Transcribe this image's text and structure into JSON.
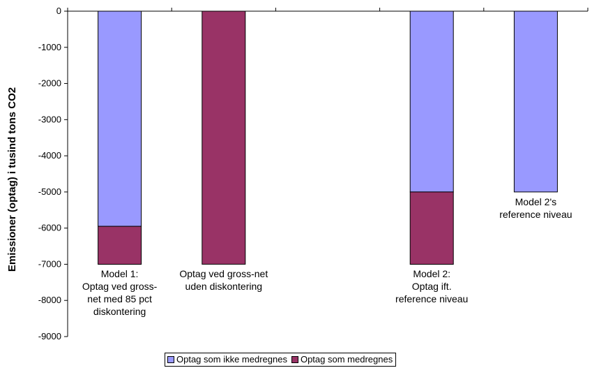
{
  "chart_data": {
    "type": "bar",
    "stacked": true,
    "ylabel": "Emissioner (optag) i tusind tons CO2",
    "ylim": [
      -9000,
      0
    ],
    "yticks": [
      0,
      -1000,
      -2000,
      -3000,
      -4000,
      -5000,
      -6000,
      -7000,
      -8000,
      -9000
    ],
    "categories": [
      "Model 1:\nOptag ved gross-\nnet med 85 pct\ndiskontering",
      "Optag ved gross-net\nuden diskontering",
      "",
      "Model 2:\nOptag ift.\nreference niveau",
      "Model 2's\nreference niveau"
    ],
    "series": [
      {
        "name": "Optag som ikke medregnes",
        "color": "#9999ff",
        "values": [
          -5950,
          0,
          0,
          -5000,
          -5000
        ]
      },
      {
        "name": "Optag som medregnes",
        "color": "#993366",
        "values": [
          -1050,
          -7000,
          0,
          -2000,
          0
        ]
      }
    ],
    "legend": "bottom",
    "grid": false
  }
}
